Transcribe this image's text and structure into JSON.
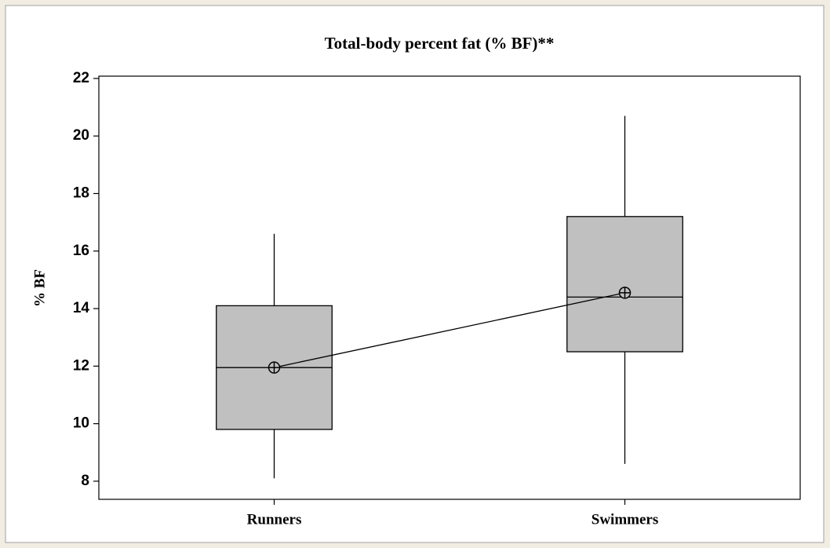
{
  "chart_data": {
    "type": "box",
    "title": "Total-body percent fat (% BF)**",
    "ylabel": "% BF",
    "categories": [
      "Runners",
      "Swimmers"
    ],
    "boxes": [
      {
        "min": 8.1,
        "q1": 9.8,
        "median": 11.95,
        "q3": 14.1,
        "max": 16.6,
        "mean": 11.95
      },
      {
        "min": 8.6,
        "q1": 12.5,
        "median": 14.4,
        "q3": 17.2,
        "max": 20.7,
        "mean": 14.55
      }
    ],
    "color": "#c0c0c0",
    "ylim": [
      7.37,
      22.08
    ],
    "yticks": [
      8,
      10,
      12,
      14,
      16,
      18,
      20,
      22
    ]
  }
}
